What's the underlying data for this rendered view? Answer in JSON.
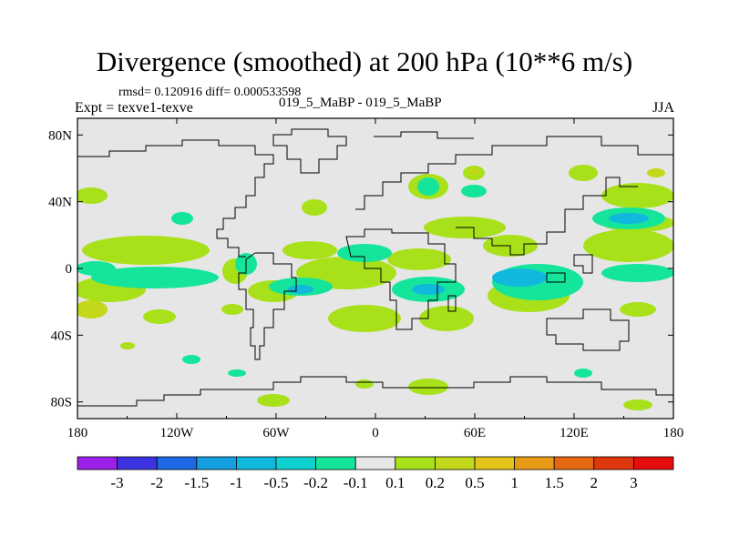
{
  "title": "Divergence (smoothed) at 200 hPa (10**6 m/s)",
  "stats": "rmsd= 0.120916 diff= 0.000533598",
  "expt": "Expt = texve1-texve",
  "cases": "019_5_MaBP - 019_5_MaBP",
  "season": "JJA",
  "lat_ticks": [
    "80N",
    "40N",
    "0",
    "40S",
    "80S"
  ],
  "lon_ticks": [
    "180",
    "120W",
    "60W",
    "0",
    "60E",
    "120E",
    "180"
  ],
  "colorbar": {
    "labels": [
      "-3",
      "-2",
      "-1.5",
      "-1",
      "-0.5",
      "-0.2",
      "-0.1",
      "0.1",
      "0.2",
      "0.5",
      "1",
      "1.5",
      "2",
      "3"
    ],
    "colors": [
      "#9b1fe8",
      "#3d33e0",
      "#1c69e3",
      "#159ee0",
      "#11b8de",
      "#0fd2d0",
      "#14e59a",
      "#e6e6e6",
      "#a8e01a",
      "#c3d81a",
      "#e2c41b",
      "#e69a15",
      "#e66712",
      "#e0360e",
      "#e60d0d"
    ]
  },
  "map_colors": {
    "background": "#e6e6e6",
    "coast": "#000000"
  }
}
